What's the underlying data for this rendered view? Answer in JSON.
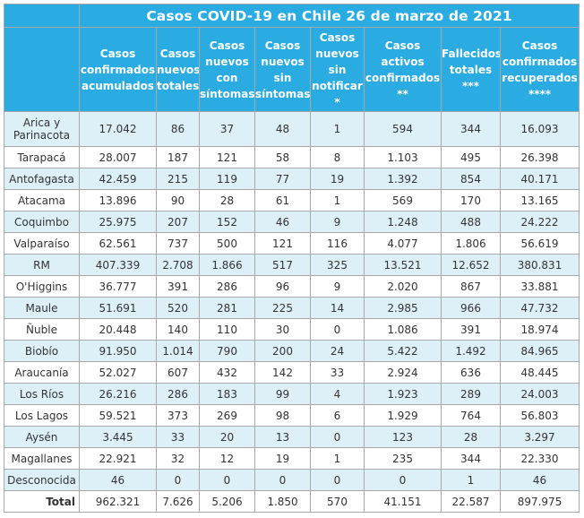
{
  "title": "Casos COVID-19 en Chile 26 de marzo de 2021",
  "columns": [
    "",
    "Casos confirmados acumulados",
    "Casos nuevos totales",
    "Casos nuevos con síntomas",
    "Casos nuevos sin síntomas",
    "Casos nuevos sin notificar *",
    "Casos activos confirmados **",
    "Fallecidos totales ***",
    "Casos confirmados recuperados ****"
  ],
  "rows": [
    [
      "Arica y Parinacota",
      "17.042",
      "86",
      "37",
      "48",
      "1",
      "594",
      "344",
      "16.093"
    ],
    [
      "Tarapacá",
      "28.007",
      "187",
      "121",
      "58",
      "8",
      "1.103",
      "495",
      "26.398"
    ],
    [
      "Antofagasta",
      "42.459",
      "215",
      "119",
      "77",
      "19",
      "1.392",
      "854",
      "40.171"
    ],
    [
      "Atacama",
      "13.896",
      "90",
      "28",
      "61",
      "1",
      "569",
      "170",
      "13.165"
    ],
    [
      "Coquimbo",
      "25.975",
      "207",
      "152",
      "46",
      "9",
      "1.248",
      "488",
      "24.222"
    ],
    [
      "Valparaíso",
      "62.561",
      "737",
      "500",
      "121",
      "116",
      "4.077",
      "1.806",
      "56.619"
    ],
    [
      "RM",
      "407.339",
      "2.708",
      "1.866",
      "517",
      "325",
      "13.521",
      "12.652",
      "380.831"
    ],
    [
      "O'Higgins",
      "36.777",
      "391",
      "286",
      "96",
      "9",
      "2.020",
      "867",
      "33.881"
    ],
    [
      "Maule",
      "51.691",
      "520",
      "281",
      "225",
      "14",
      "2.985",
      "966",
      "47.732"
    ],
    [
      "Ñuble",
      "20.448",
      "140",
      "110",
      "30",
      "0",
      "1.086",
      "391",
      "18.974"
    ],
    [
      "Biobío",
      "91.950",
      "1.014",
      "790",
      "200",
      "24",
      "5.422",
      "1.492",
      "84.965"
    ],
    [
      "Araucanía",
      "52.027",
      "607",
      "432",
      "142",
      "33",
      "2.924",
      "636",
      "48.445"
    ],
    [
      "Los Ríos",
      "26.216",
      "286",
      "183",
      "99",
      "4",
      "1.923",
      "289",
      "24.003"
    ],
    [
      "Los Lagos",
      "59.521",
      "373",
      "269",
      "98",
      "6",
      "1.929",
      "764",
      "56.803"
    ],
    [
      "Aysén",
      "3.445",
      "33",
      "20",
      "13",
      "0",
      "123",
      "28",
      "3.297"
    ],
    [
      "Magallanes",
      "22.921",
      "32",
      "12",
      "19",
      "1",
      "235",
      "344",
      "22.330"
    ],
    [
      "Desconocida",
      "46",
      "0",
      "0",
      "0",
      "0",
      "0",
      "1",
      "46"
    ]
  ],
  "total": [
    "Total",
    "962.321",
    "7.626",
    "5.206",
    "1.850",
    "570",
    "41.151",
    "22.587",
    "897.975"
  ],
  "colors": {
    "header": "#2aabe2",
    "stripe": "#ddf0f8",
    "border": "#a8a8a8"
  }
}
